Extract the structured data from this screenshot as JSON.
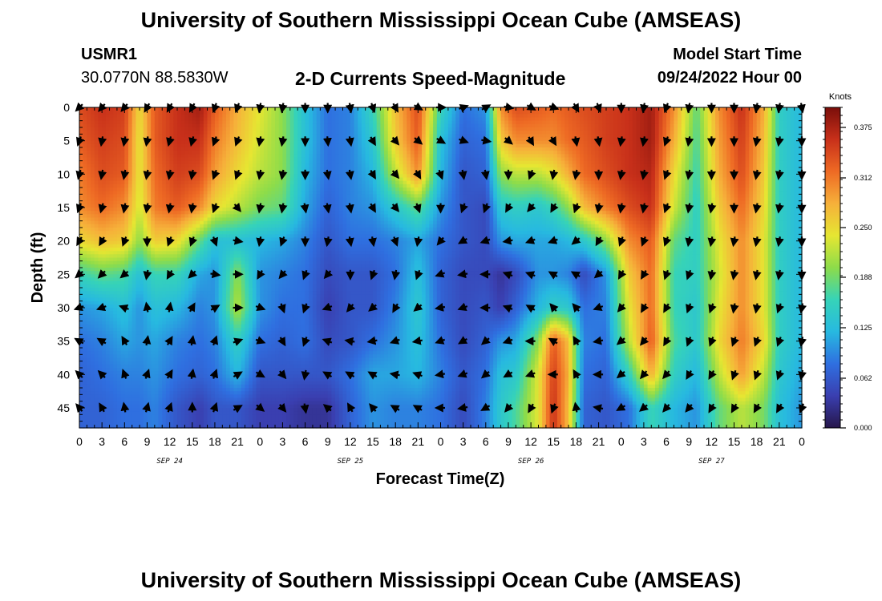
{
  "header": {
    "title": "University of Southern Mississippi Ocean Cube (AMSEAS)",
    "station_id": "USMR1",
    "coordinates": "30.0770N  88.5830W",
    "subtitle": "2-D Currents Speed-Magnitude",
    "model_start_label": "Model Start Time",
    "model_start_value": "09/24/2022 Hour 00"
  },
  "footer": {
    "title": "University of Southern Mississippi Ocean Cube (AMSEAS)"
  },
  "chart_data": {
    "type": "heatmap",
    "title": "2-D Currents Speed-Magnitude",
    "xlabel": "Forecast Time(Z)",
    "ylabel": "Depth (ft)",
    "x_range_hours": [
      0,
      96
    ],
    "y_range_ft": [
      0,
      48
    ],
    "x_tick_labels": [
      "0",
      "3",
      "6",
      "9",
      "12",
      "15",
      "18",
      "21",
      "0",
      "3",
      "6",
      "9",
      "12",
      "15",
      "18",
      "21",
      "0",
      "3",
      "6",
      "9",
      "12",
      "15",
      "18",
      "21",
      "0",
      "3",
      "6",
      "9",
      "12",
      "15",
      "18",
      "21",
      "0"
    ],
    "y_ticks": [
      0,
      5,
      10,
      15,
      20,
      25,
      30,
      35,
      40,
      45
    ],
    "date_labels": [
      {
        "label": "SEP 24",
        "hour": 12
      },
      {
        "label": "SEP 25",
        "hour": 36
      },
      {
        "label": "SEP 26",
        "hour": 60
      },
      {
        "label": "SEP 27",
        "hour": 84
      }
    ],
    "colorbar": {
      "unit": "Knots",
      "range": [
        0.0,
        0.4
      ],
      "tick_labels": [
        "0.375",
        "0.312",
        "0.250",
        "0.188",
        "0.125",
        "0.062",
        "0.000"
      ],
      "tick_values": [
        0.375,
        0.312,
        0.25,
        0.188,
        0.125,
        0.062,
        0.0
      ],
      "colors": [
        "#26164a",
        "#3a3fb0",
        "#2f6fe0",
        "#27b9e0",
        "#36d3b8",
        "#8ddc4a",
        "#e6e632",
        "#f6b03a",
        "#ee6a24",
        "#c8301a",
        "#7a0e0a"
      ]
    },
    "speed_profiles": [
      {
        "hour": 0,
        "speed": [
          0.34,
          0.33,
          0.31,
          0.3,
          0.25,
          0.16,
          0.1,
          0.08,
          0.07,
          0.07
        ]
      },
      {
        "hour": 3,
        "speed": [
          0.36,
          0.35,
          0.34,
          0.32,
          0.27,
          0.18,
          0.11,
          0.09,
          0.08,
          0.07
        ]
      },
      {
        "hour": 6,
        "speed": [
          0.35,
          0.34,
          0.33,
          0.3,
          0.26,
          0.17,
          0.13,
          0.11,
          0.09,
          0.08
        ]
      },
      {
        "hour": 8,
        "speed": [
          0.25,
          0.24,
          0.24,
          0.23,
          0.2,
          0.13,
          0.1,
          0.1,
          0.09,
          0.08
        ]
      },
      {
        "hour": 10,
        "speed": [
          0.33,
          0.33,
          0.32,
          0.31,
          0.26,
          0.16,
          0.13,
          0.11,
          0.1,
          0.09
        ]
      },
      {
        "hour": 13,
        "speed": [
          0.36,
          0.36,
          0.35,
          0.33,
          0.25,
          0.16,
          0.12,
          0.09,
          0.08,
          0.06
        ]
      },
      {
        "hour": 16,
        "speed": [
          0.38,
          0.36,
          0.34,
          0.3,
          0.18,
          0.11,
          0.09,
          0.08,
          0.07,
          0.04
        ]
      },
      {
        "hour": 18,
        "speed": [
          0.33,
          0.31,
          0.29,
          0.25,
          0.13,
          0.1,
          0.1,
          0.09,
          0.08,
          0.06
        ]
      },
      {
        "hour": 21,
        "speed": [
          0.28,
          0.27,
          0.25,
          0.22,
          0.13,
          0.2,
          0.22,
          0.15,
          0.12,
          0.06
        ]
      },
      {
        "hour": 24,
        "speed": [
          0.24,
          0.23,
          0.22,
          0.19,
          0.12,
          0.1,
          0.1,
          0.08,
          0.06,
          0.04
        ]
      },
      {
        "hour": 27,
        "speed": [
          0.2,
          0.2,
          0.2,
          0.18,
          0.11,
          0.09,
          0.08,
          0.07,
          0.06,
          0.04
        ]
      },
      {
        "hour": 30,
        "speed": [
          0.13,
          0.13,
          0.12,
          0.11,
          0.09,
          0.08,
          0.08,
          0.08,
          0.06,
          0.03
        ]
      },
      {
        "hour": 33,
        "speed": [
          0.08,
          0.08,
          0.08,
          0.07,
          0.06,
          0.05,
          0.04,
          0.05,
          0.06,
          0.03
        ]
      },
      {
        "hour": 36,
        "speed": [
          0.09,
          0.09,
          0.09,
          0.09,
          0.08,
          0.06,
          0.06,
          0.06,
          0.08,
          0.07
        ]
      },
      {
        "hour": 39,
        "speed": [
          0.16,
          0.14,
          0.12,
          0.1,
          0.08,
          0.06,
          0.06,
          0.08,
          0.11,
          0.1
        ]
      },
      {
        "hour": 42,
        "speed": [
          0.27,
          0.26,
          0.22,
          0.14,
          0.09,
          0.08,
          0.09,
          0.1,
          0.11,
          0.09
        ]
      },
      {
        "hour": 45,
        "speed": [
          0.34,
          0.33,
          0.3,
          0.18,
          0.11,
          0.13,
          0.14,
          0.13,
          0.12,
          0.09
        ]
      },
      {
        "hour": 48,
        "speed": [
          0.16,
          0.13,
          0.12,
          0.1,
          0.08,
          0.07,
          0.07,
          0.08,
          0.09,
          0.08
        ]
      },
      {
        "hour": 51,
        "speed": [
          0.08,
          0.07,
          0.06,
          0.06,
          0.06,
          0.05,
          0.05,
          0.05,
          0.06,
          0.05
        ]
      },
      {
        "hour": 54,
        "speed": [
          0.1,
          0.08,
          0.07,
          0.05,
          0.05,
          0.05,
          0.06,
          0.07,
          0.08,
          0.09
        ]
      },
      {
        "hour": 56,
        "speed": [
          0.3,
          0.26,
          0.2,
          0.14,
          0.1,
          0.03,
          0.04,
          0.1,
          0.13,
          0.14
        ]
      },
      {
        "hour": 58,
        "speed": [
          0.34,
          0.3,
          0.22,
          0.15,
          0.11,
          0.05,
          0.07,
          0.11,
          0.14,
          0.17
        ]
      },
      {
        "hour": 61,
        "speed": [
          0.33,
          0.3,
          0.22,
          0.14,
          0.11,
          0.1,
          0.12,
          0.2,
          0.24,
          0.24
        ]
      },
      {
        "hour": 63,
        "speed": [
          0.32,
          0.3,
          0.24,
          0.16,
          0.11,
          0.1,
          0.15,
          0.33,
          0.35,
          0.36
        ]
      },
      {
        "hour": 65,
        "speed": [
          0.33,
          0.32,
          0.28,
          0.2,
          0.12,
          0.09,
          0.14,
          0.27,
          0.28,
          0.27
        ]
      },
      {
        "hour": 67,
        "speed": [
          0.34,
          0.33,
          0.32,
          0.27,
          0.14,
          0.05,
          0.08,
          0.09,
          0.08,
          0.07
        ]
      },
      {
        "hour": 70,
        "speed": [
          0.35,
          0.35,
          0.34,
          0.31,
          0.2,
          0.1,
          0.09,
          0.08,
          0.07,
          0.06
        ]
      },
      {
        "hour": 73,
        "speed": [
          0.36,
          0.36,
          0.36,
          0.34,
          0.3,
          0.26,
          0.24,
          0.22,
          0.15,
          0.08
        ]
      },
      {
        "hour": 76,
        "speed": [
          0.38,
          0.38,
          0.37,
          0.36,
          0.33,
          0.32,
          0.32,
          0.33,
          0.28,
          0.16
        ]
      },
      {
        "hour": 79,
        "speed": [
          0.3,
          0.28,
          0.25,
          0.23,
          0.18,
          0.16,
          0.16,
          0.17,
          0.15,
          0.12
        ]
      },
      {
        "hour": 82,
        "speed": [
          0.18,
          0.17,
          0.16,
          0.15,
          0.15,
          0.15,
          0.14,
          0.14,
          0.12,
          0.1
        ]
      },
      {
        "hour": 85,
        "speed": [
          0.3,
          0.29,
          0.28,
          0.26,
          0.24,
          0.23,
          0.24,
          0.25,
          0.22,
          0.18
        ]
      },
      {
        "hour": 88,
        "speed": [
          0.36,
          0.35,
          0.34,
          0.32,
          0.3,
          0.3,
          0.3,
          0.31,
          0.29,
          0.22
        ]
      },
      {
        "hour": 91,
        "speed": [
          0.28,
          0.27,
          0.26,
          0.25,
          0.24,
          0.24,
          0.24,
          0.25,
          0.22,
          0.19
        ]
      },
      {
        "hour": 93,
        "speed": [
          0.15,
          0.15,
          0.15,
          0.15,
          0.15,
          0.15,
          0.15,
          0.15,
          0.14,
          0.13
        ]
      },
      {
        "hour": 96,
        "speed": [
          0.12,
          0.12,
          0.12,
          0.12,
          0.12,
          0.12,
          0.12,
          0.12,
          0.11,
          0.1
        ]
      }
    ],
    "vector_depths_ft": [
      0,
      5,
      10,
      15,
      20,
      25,
      30,
      35,
      40,
      45
    ],
    "vectors": [
      {
        "hour": 0,
        "dir_deg": [
          225,
          200,
          195,
          200,
          210,
          230,
          250,
          300,
          315,
          320
        ]
      },
      {
        "hour": 3,
        "dir_deg": [
          220,
          190,
          190,
          195,
          210,
          225,
          250,
          300,
          315,
          330
        ]
      },
      {
        "hour": 6,
        "dir_deg": [
          220,
          190,
          190,
          190,
          200,
          230,
          290,
          330,
          340,
          350
        ]
      },
      {
        "hour": 9,
        "dir_deg": [
          210,
          190,
          190,
          190,
          180,
          190,
          350,
          10,
          20,
          15
        ]
      },
      {
        "hour": 12,
        "dir_deg": [
          210,
          195,
          190,
          190,
          200,
          210,
          10,
          30,
          30,
          20
        ]
      },
      {
        "hour": 15,
        "dir_deg": [
          210,
          195,
          190,
          190,
          200,
          225,
          30,
          10,
          10,
          0
        ]
      },
      {
        "hour": 18,
        "dir_deg": [
          200,
          200,
          200,
          200,
          160,
          100,
          60,
          20,
          20,
          20
        ]
      },
      {
        "hour": 21,
        "dir_deg": [
          200,
          200,
          200,
          140,
          100,
          90,
          90,
          70,
          60,
          60
        ]
      },
      {
        "hour": 24,
        "dir_deg": [
          190,
          190,
          190,
          190,
          190,
          210,
          110,
          110,
          120,
          130
        ]
      },
      {
        "hour": 27,
        "dir_deg": [
          190,
          190,
          190,
          190,
          200,
          220,
          160,
          150,
          140,
          140
        ]
      },
      {
        "hour": 30,
        "dir_deg": [
          180,
          180,
          180,
          170,
          180,
          200,
          200,
          200,
          190,
          170
        ]
      },
      {
        "hour": 33,
        "dir_deg": [
          180,
          175,
          170,
          170,
          190,
          220,
          250,
          290,
          300,
          310
        ]
      },
      {
        "hour": 36,
        "dir_deg": [
          170,
          170,
          170,
          170,
          170,
          180,
          220,
          280,
          300,
          330
        ]
      },
      {
        "hour": 39,
        "dir_deg": [
          160,
          150,
          150,
          150,
          170,
          200,
          230,
          260,
          300,
          320
        ]
      },
      {
        "hour": 42,
        "dir_deg": [
          150,
          140,
          140,
          140,
          160,
          190,
          210,
          250,
          280,
          300
        ]
      },
      {
        "hour": 45,
        "dir_deg": [
          120,
          130,
          150,
          160,
          190,
          200,
          230,
          260,
          290,
          300
        ]
      },
      {
        "hour": 48,
        "dir_deg": [
          90,
          120,
          160,
          180,
          220,
          250,
          260,
          250,
          260,
          270
        ]
      },
      {
        "hour": 51,
        "dir_deg": [
          70,
          110,
          170,
          200,
          240,
          260,
          250,
          240,
          250,
          260
        ]
      },
      {
        "hour": 54,
        "dir_deg": [
          60,
          100,
          170,
          200,
          250,
          270,
          270,
          230,
          230,
          240
        ]
      },
      {
        "hour": 57,
        "dir_deg": [
          100,
          130,
          180,
          210,
          260,
          290,
          290,
          250,
          240,
          220
        ]
      },
      {
        "hour": 60,
        "dir_deg": [
          120,
          150,
          200,
          220,
          250,
          290,
          300,
          270,
          250,
          210
        ]
      },
      {
        "hour": 63,
        "dir_deg": [
          110,
          150,
          190,
          210,
          250,
          300,
          320,
          300,
          270,
          200
        ]
      },
      {
        "hour": 66,
        "dir_deg": [
          150,
          170,
          190,
          200,
          230,
          300,
          320,
          330,
          330,
          350
        ]
      },
      {
        "hour": 69,
        "dir_deg": [
          160,
          170,
          180,
          190,
          210,
          230,
          250,
          260,
          270,
          280
        ]
      },
      {
        "hour": 72,
        "dir_deg": [
          180,
          190,
          190,
          190,
          200,
          210,
          220,
          230,
          230,
          240
        ]
      },
      {
        "hour": 75,
        "dir_deg": [
          190,
          190,
          190,
          190,
          200,
          210,
          210,
          220,
          220,
          230
        ]
      },
      {
        "hour": 78,
        "dir_deg": [
          200,
          200,
          200,
          200,
          200,
          200,
          210,
          210,
          220,
          220
        ]
      },
      {
        "hour": 81,
        "dir_deg": [
          190,
          190,
          190,
          190,
          190,
          200,
          200,
          200,
          210,
          220
        ]
      },
      {
        "hour": 84,
        "dir_deg": [
          180,
          180,
          180,
          190,
          190,
          190,
          200,
          200,
          210,
          210
        ]
      },
      {
        "hour": 87,
        "dir_deg": [
          180,
          180,
          180,
          180,
          190,
          190,
          190,
          200,
          200,
          210
        ]
      },
      {
        "hour": 90,
        "dir_deg": [
          190,
          190,
          190,
          190,
          190,
          190,
          190,
          200,
          200,
          210
        ]
      },
      {
        "hour": 93,
        "dir_deg": [
          190,
          190,
          190,
          190,
          190,
          190,
          200,
          200,
          200,
          210
        ]
      },
      {
        "hour": 96,
        "dir_deg": [
          170,
          180,
          180,
          180,
          180,
          180,
          190,
          190,
          190,
          200
        ]
      }
    ]
  }
}
